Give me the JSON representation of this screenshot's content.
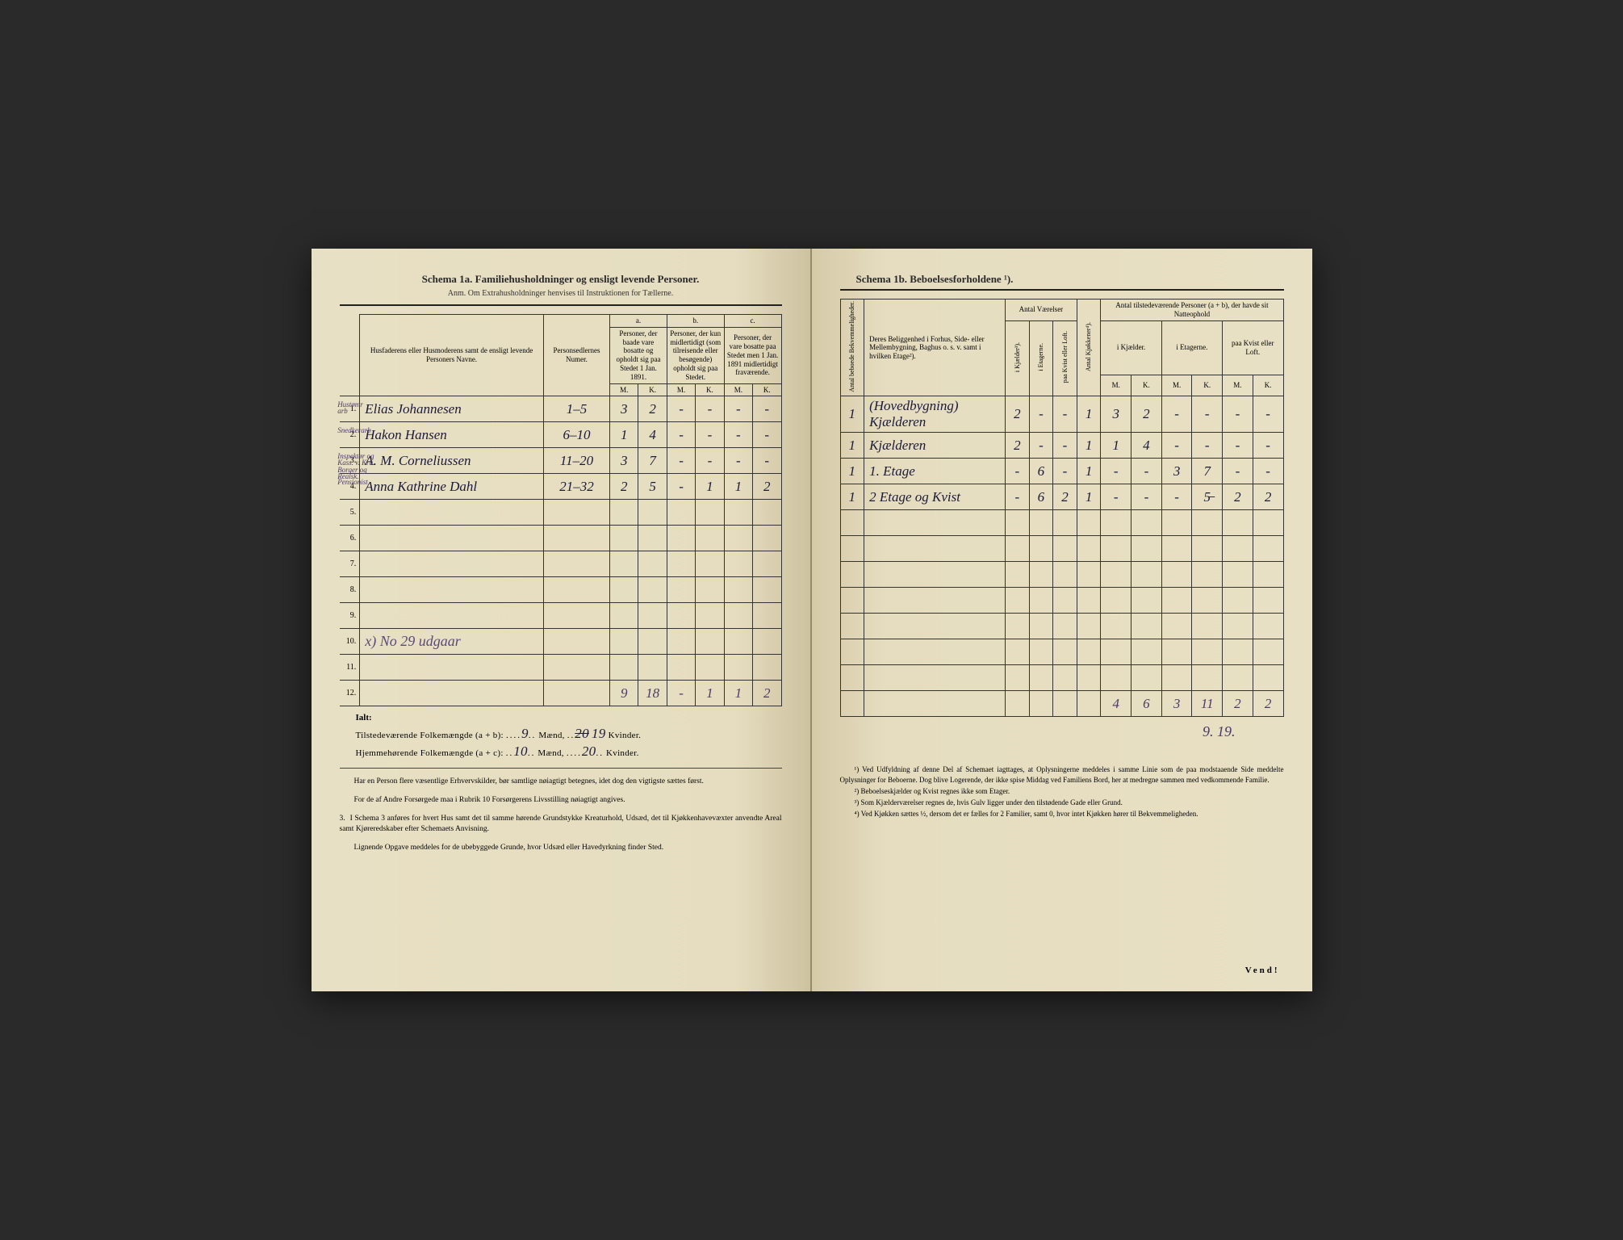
{
  "left": {
    "schema": "Schema 1a.  Familiehusholdninger og ensligt levende Personer.",
    "anm": "Anm.  Om Extrahusholdninger henvises til Instruktionen for Tællerne.",
    "headers": {
      "name": "Husfaderens eller Husmoderens samt de ensligt levende Personers Navne.",
      "numer": "Personsedlernes Numer.",
      "a_label": "a.",
      "a": "Personer, der baade vare bosatte og opholdt sig paa Stedet 1 Jan. 1891.",
      "b_label": "b.",
      "b": "Personer, der kun midlertidigt (som tilreisende eller besøgende) opholdt sig paa Stedet.",
      "c_label": "c.",
      "c": "Personer, der vare bosatte paa Stedet men 1 Jan. 1891 midlertidigt fraværende.",
      "m": "M.",
      "k": "K."
    },
    "rows": [
      {
        "n": "1.",
        "marginal": "Hustømr\narb",
        "name": "Elias Johannesen",
        "numer": "1–5",
        "am": "3",
        "ak": "2",
        "bm": "-",
        "bk": "-",
        "cm": "-",
        "ck": "-",
        "check": "✓"
      },
      {
        "n": "2.",
        "marginal": "Snedkerarb",
        "name": "Hakon Hansen",
        "numer": "6–10",
        "am": "1",
        "ak": "4",
        "bm": "-",
        "bk": "-",
        "cm": "-",
        "ck": "-",
        "check": ""
      },
      {
        "n": "3.",
        "marginal": "Inspektør og\nKass. v. Kra.\nBorger og Realsk.",
        "name": "A. M. Corneliussen",
        "numer": "11–20",
        "am": "3",
        "ak": "7",
        "bm": "-",
        "bk": "-",
        "cm": "-",
        "ck": "-",
        "check": ""
      },
      {
        "n": "4.",
        "marginal": "Pensionist",
        "name": "Anna Kathrine Dahl",
        "numer": "21–32",
        "am": "2",
        "ak": "5",
        "bm": "-",
        "bk": "1",
        "cm": "1",
        "ck": "2",
        "check": "✓"
      },
      {
        "n": "5.",
        "marginal": "",
        "name": "",
        "numer": "",
        "am": "",
        "ak": "",
        "bm": "",
        "bk": "",
        "cm": "",
        "ck": ""
      },
      {
        "n": "6.",
        "marginal": "",
        "name": "",
        "numer": "",
        "am": "",
        "ak": "",
        "bm": "",
        "bk": "",
        "cm": "",
        "ck": ""
      },
      {
        "n": "7.",
        "marginal": "",
        "name": "",
        "numer": "",
        "am": "",
        "ak": "",
        "bm": "",
        "bk": "",
        "cm": "",
        "ck": ""
      },
      {
        "n": "8.",
        "marginal": "",
        "name": "",
        "numer": "",
        "am": "",
        "ak": "",
        "bm": "",
        "bk": "",
        "cm": "",
        "ck": ""
      },
      {
        "n": "9.",
        "marginal": "",
        "name": "",
        "numer": "",
        "am": "",
        "ak": "",
        "bm": "",
        "bk": "",
        "cm": "",
        "ck": ""
      },
      {
        "n": "10.",
        "marginal": "",
        "name": "x) No 29 udgaar",
        "numer": "",
        "am": "",
        "ak": "",
        "bm": "",
        "bk": "",
        "cm": "",
        "ck": ""
      },
      {
        "n": "11.",
        "marginal": "",
        "name": "",
        "numer": "",
        "am": "",
        "ak": "",
        "bm": "",
        "bk": "",
        "cm": "",
        "ck": ""
      },
      {
        "n": "12.",
        "marginal": "",
        "name": "",
        "numer": "",
        "am": "9",
        "ak": "18",
        "bm": "-",
        "bk": "1",
        "cm": "1",
        "ck": "2"
      }
    ],
    "ialt": "Ialt:",
    "tilstede": "Tilstedeværende Folkemængde (a + b):",
    "hjemme": "Hjemmehørende Folkemængde (a + c):",
    "maend": "Mænd,",
    "kvinder": "Kvinder.",
    "t_m": "9",
    "t_k_struck": "20",
    "t_k": "19",
    "h_m": "10",
    "h_k": "20",
    "para1": "Har en Person flere væsentlige Erhvervskilder, bør samtlige nøiagtigt betegnes, idet dog den vigtigste sættes først.",
    "para2": "For de af Andre Forsørgede maa i Rubrik 10 Forsørgerens Livsstilling nøiagtigt angives.",
    "para3_num": "3.",
    "para3": "I Schema 3 anføres for hvert Hus samt det til samme hørende Grundstykke Kreaturhold, Udsæd, det til Kjøkkenhavevæxter anvendte Areal samt Kjøreredskaber efter Schemaets Anvisning.",
    "para4": "Lignende Opgave meddeles for de ubebyggede Grunde, hvor Udsæd eller Havedyrkning finder Sted."
  },
  "right": {
    "schema": "Schema 1b.                    Beboelsesforholdene ¹).",
    "headers": {
      "antal_beb": "Antal beboede Bekvemmeligheder.",
      "belig": "Deres Beliggenhed i Forhus, Side- eller Mellembygning, Baghus o. s. v. samt i hvilken Etage²).",
      "vaerelser": "Antal Værelser",
      "kjaelder": "i Kjælder³).",
      "etager": "i Etagerne.",
      "kvist": "paa Kvist eller Loft.",
      "kjokken": "Antal Kjøkkener⁴).",
      "natteophold": "Antal tilstedeværende Personer (a + b), der havde sit Natteophold",
      "n_kjael": "i Kjælder.",
      "n_etag": "i Etagerne.",
      "n_kvist": "paa Kvist eller Loft.",
      "m": "M.",
      "k": "K."
    },
    "rows": [
      {
        "ab": "1",
        "loc": "(Hovedbygning) Kjælderen",
        "vk": "2",
        "ve": "-",
        "vkv": "-",
        "kj": "1",
        "nkm": "3",
        "nkk": "2",
        "nem": "-",
        "nek": "-",
        "nvm": "-",
        "nvk": "-"
      },
      {
        "ab": "1",
        "loc": "Kjælderen",
        "vk": "2",
        "ve": "-",
        "vkv": "-",
        "kj": "1",
        "nkm": "1",
        "nkk": "4",
        "nem": "-",
        "nek": "-",
        "nvm": "-",
        "nvk": "-"
      },
      {
        "ab": "1",
        "loc": "1. Etage",
        "vk": "-",
        "ve": "6",
        "vkv": "-",
        "kj": "1",
        "nkm": "-",
        "nkk": "-",
        "nem": "3",
        "nek": "7",
        "nvm": "-",
        "nvk": "-"
      },
      {
        "ab": "1",
        "loc": "2 Etage og Kvist",
        "vk": "-",
        "ve": "6",
        "vkv": "2",
        "kj": "1",
        "nkm": "-",
        "nkk": "-",
        "nem": "-",
        "nek": "5̶",
        "nvm": "2",
        "nvk": "2"
      },
      {
        "ab": "",
        "loc": "",
        "vk": "",
        "ve": "",
        "vkv": "",
        "kj": "",
        "nkm": "",
        "nkk": "",
        "nem": "",
        "nek": "",
        "nvm": "",
        "nvk": ""
      },
      {
        "ab": "",
        "loc": "",
        "vk": "",
        "ve": "",
        "vkv": "",
        "kj": "",
        "nkm": "",
        "nkk": "",
        "nem": "",
        "nek": "",
        "nvm": "",
        "nvk": ""
      },
      {
        "ab": "",
        "loc": "",
        "vk": "",
        "ve": "",
        "vkv": "",
        "kj": "",
        "nkm": "",
        "nkk": "",
        "nem": "",
        "nek": "",
        "nvm": "",
        "nvk": ""
      },
      {
        "ab": "",
        "loc": "",
        "vk": "",
        "ve": "",
        "vkv": "",
        "kj": "",
        "nkm": "",
        "nkk": "",
        "nem": "",
        "nek": "",
        "nvm": "",
        "nvk": ""
      },
      {
        "ab": "",
        "loc": "",
        "vk": "",
        "ve": "",
        "vkv": "",
        "kj": "",
        "nkm": "",
        "nkk": "",
        "nem": "",
        "nek": "",
        "nvm": "",
        "nvk": ""
      },
      {
        "ab": "",
        "loc": "",
        "vk": "",
        "ve": "",
        "vkv": "",
        "kj": "",
        "nkm": "",
        "nkk": "",
        "nem": "",
        "nek": "",
        "nvm": "",
        "nvk": ""
      },
      {
        "ab": "",
        "loc": "",
        "vk": "",
        "ve": "",
        "vkv": "",
        "kj": "",
        "nkm": "",
        "nkk": "",
        "nem": "",
        "nek": "",
        "nvm": "",
        "nvk": ""
      },
      {
        "ab": "",
        "loc": "",
        "vk": "",
        "ve": "",
        "vkv": "",
        "kj": "",
        "nkm": "4",
        "nkk": "6",
        "nem": "3",
        "nek": "11",
        "nvm": "2",
        "nvk": "2"
      }
    ],
    "below_totals": "9.   19.",
    "fn1": "¹) Ved Udfyldning af denne Del af Schemaet iagttages, at Oplysningerne meddeles i samme Linie som de paa modstaaende Side meddelte Oplysninger for Beboerne. Dog blive Logerende, der ikke spise Middag ved Familiens Bord, her at medregne sammen med vedkommende Familie.",
    "fn2": "²) Beboelseskjælder og Kvist regnes ikke som Etager.",
    "fn3": "³) Som Kjælderværelser regnes de, hvis Gulv ligger under den tilstødende Gade eller Grund.",
    "fn4": "⁴) Ved Kjøkken sættes ½, dersom det er fælles for 2 Familier, samt 0, hvor intet Kjøkken hører til Bekvemmeligheden.",
    "vend": "Vend!"
  }
}
